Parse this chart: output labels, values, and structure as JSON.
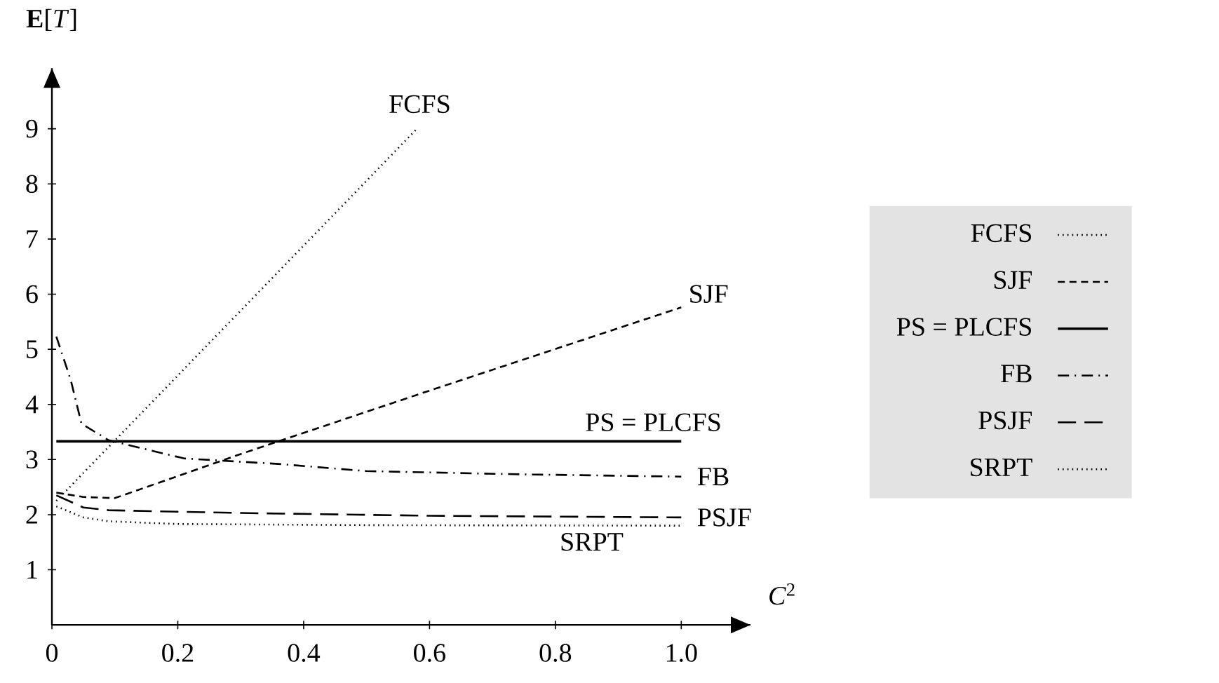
{
  "chart_data": {
    "type": "line",
    "xlabel": "*C*$^{2}$",
    "ylabel": "**E**[*T*]",
    "xlim": [
      0,
      1.11
    ],
    "ylim": [
      0,
      10.1
    ],
    "xticks": [
      0,
      0.2,
      0.4,
      0.6,
      0.8,
      {
        "value": 1,
        "label": "1.0"
      }
    ],
    "yticks": [
      1,
      2,
      3,
      4,
      5,
      6,
      7,
      8,
      9
    ],
    "legend": "right",
    "grid": false,
    "series": [
      {
        "name": "FCFS",
        "color": "#000000",
        "line_style": "dotted",
        "x": [
          0.007,
          0.58
        ],
        "values": [
          2.25,
          9.0
        ]
      },
      {
        "name": "SJF",
        "color": "#000000",
        "line_style": "dashed",
        "x": [
          0.007,
          0.05,
          0.1,
          0.3,
          0.6,
          1.0
        ],
        "values": [
          2.4,
          2.32,
          2.3,
          3.1,
          4.25,
          5.76
        ]
      },
      {
        "name": "PS = PLCFS",
        "color": "#000000",
        "line_style": "solid",
        "x": [
          0.007,
          1.0
        ],
        "values": [
          3.33,
          3.33
        ]
      },
      {
        "name": "FB",
        "color": "#000000",
        "line_style": "dashdot",
        "x": [
          0.007,
          0.03,
          0.047,
          0.09,
          0.21,
          0.36,
          0.5,
          0.75,
          1.0
        ],
        "values": [
          5.23,
          4.44,
          3.65,
          3.35,
          3.02,
          2.92,
          2.79,
          2.73,
          2.69
        ]
      },
      {
        "name": "PSJF",
        "color": "#000000",
        "line_style": "longdash",
        "x": [
          0.007,
          0.05,
          0.09,
          0.3,
          0.6,
          1.0
        ],
        "values": [
          2.35,
          2.13,
          2.08,
          2.03,
          1.98,
          1.95
        ]
      },
      {
        "name": "SRPT",
        "color": "#000000",
        "line_style": "dotted",
        "x": [
          0.007,
          0.05,
          0.09,
          0.2,
          0.5,
          1.0
        ],
        "values": [
          2.15,
          1.95,
          1.88,
          1.83,
          1.81,
          1.8
        ]
      }
    ],
    "marker": "none"
  }
}
